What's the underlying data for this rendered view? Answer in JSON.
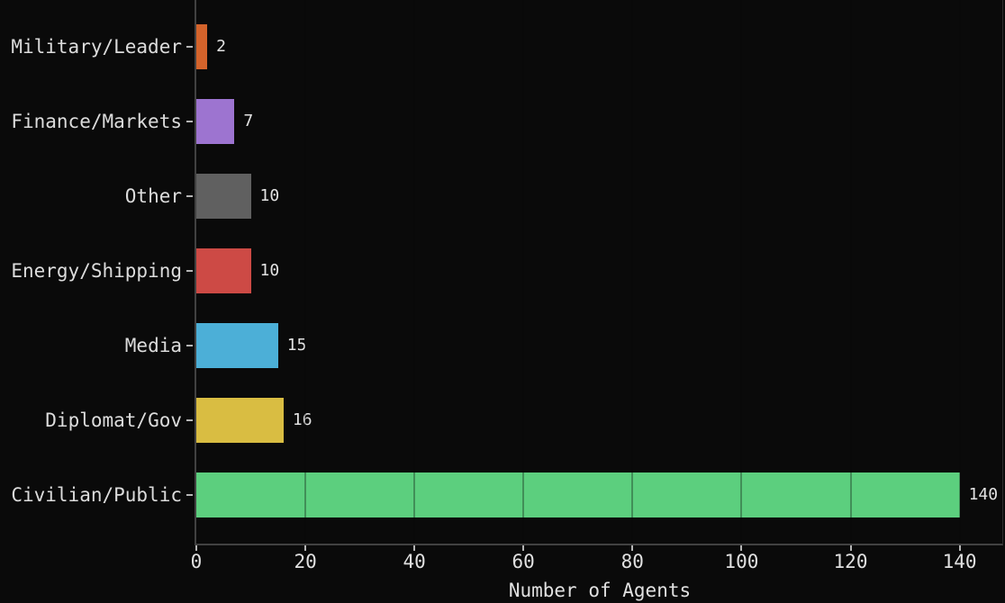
{
  "chart_data": {
    "type": "bar",
    "orientation": "horizontal",
    "title": "",
    "xlabel": "Number of Agents",
    "ylabel": "",
    "categories": [
      "Military/Leader",
      "Finance/Markets",
      "Other",
      "Energy/Shipping",
      "Media",
      "Diplomat/Gov",
      "Civilian/Public"
    ],
    "values": [
      2,
      7,
      10,
      10,
      15,
      16,
      140
    ],
    "bar_colors": [
      "#d4632b",
      "#9d74d0",
      "#606060",
      "#cd4a45",
      "#4cafd7",
      "#d9bd42",
      "#5ccf7e"
    ],
    "value_labels": [
      "2",
      "7",
      "10",
      "10",
      "15",
      "16",
      "140"
    ],
    "x_ticks": [
      0,
      20,
      40,
      60,
      80,
      100,
      120,
      140
    ],
    "x_tick_labels": [
      "0",
      "20",
      "40",
      "60",
      "80",
      "100",
      "120",
      "140"
    ],
    "xlim": [
      0,
      148
    ],
    "grid": "vertical, visible only across bars",
    "legend": "none",
    "colors": {
      "background": "#0a0a0a",
      "text": "#e2e2e2",
      "spine": "#414141",
      "tick": "#b5b5b5"
    }
  }
}
